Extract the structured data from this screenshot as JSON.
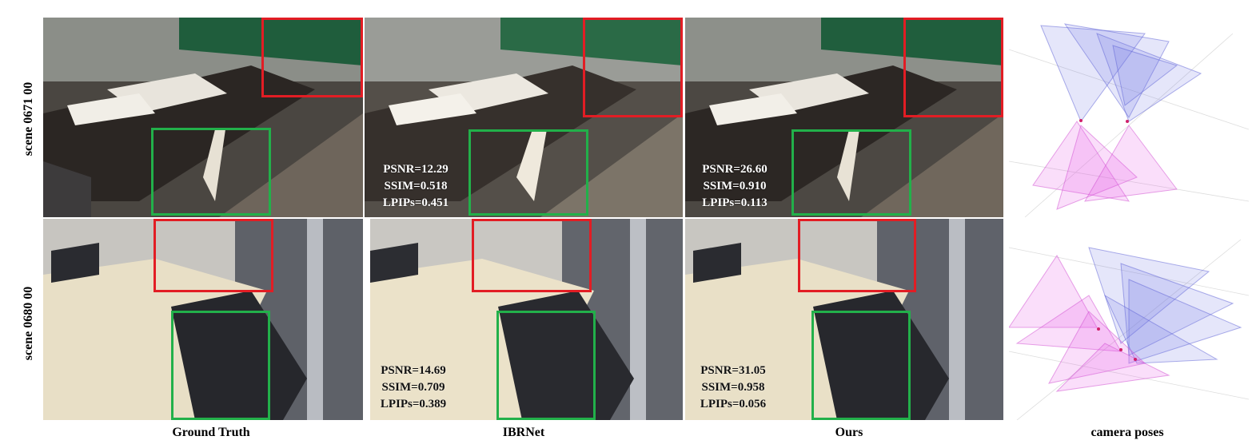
{
  "figure": {
    "rows": [
      {
        "label": "scene 0671 00",
        "panels": [
          {
            "method": "Ground Truth"
          },
          {
            "method": "IBRNet",
            "psnr": "PSNR=12.29",
            "ssim": "SSIM=0.518",
            "lpips": "LPIPs=0.451"
          },
          {
            "method": "Ours",
            "psnr": "PSNR=26.60",
            "ssim": "SSIM=0.910",
            "lpips": "LPIPs=0.113"
          }
        ]
      },
      {
        "label": "scene 0680 00",
        "panels": [
          {
            "method": "Ground Truth"
          },
          {
            "method": "IBRNet",
            "psnr": "PSNR=14.69",
            "ssim": "SSIM=0.709",
            "lpips": "LPIPs=0.389"
          },
          {
            "method": "Ours",
            "psnr": "PSNR=31.05",
            "ssim": "SSIM=0.958",
            "lpips": "LPIPs=0.056"
          }
        ]
      }
    ],
    "columns": [
      "Ground Truth",
      "IBRNet",
      "Ours",
      "camera poses"
    ],
    "colors": {
      "highlight_red": "#e21d24",
      "highlight_green": "#22b04a",
      "camera_blue": "#6f73e6",
      "camera_pink": "#e65ae6"
    }
  }
}
